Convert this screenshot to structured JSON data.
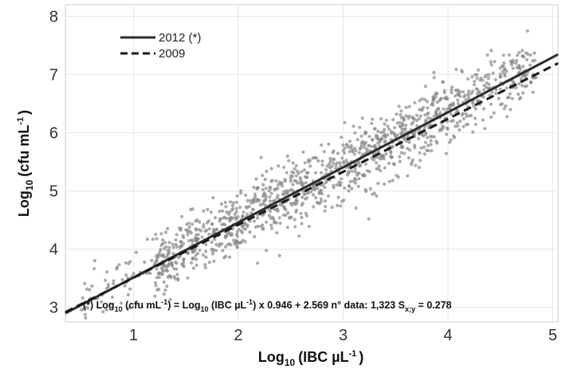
{
  "chart_data": {
    "type": "scatter",
    "xlabel": {
      "main": "Log",
      "sub": "10",
      "unit": "(IBC µL",
      "sup": "-1",
      "close": ")"
    },
    "ylabel": {
      "main": "Log",
      "sub": "10",
      "unit": "(cfu mL",
      "sup": "-1",
      "close": ")"
    },
    "xlim": [
      0.35,
      5.05
    ],
    "ylim": [
      2.75,
      8.2
    ],
    "x_ticks": [
      "1",
      "2",
      "3",
      "4",
      "5"
    ],
    "y_ticks": [
      "3",
      "4",
      "5",
      "6",
      "7",
      "8"
    ],
    "grid": true,
    "legend_position": "top-left",
    "lines": [
      {
        "name": "2012 (*)",
        "style": "solid",
        "color": "#2b2b2b",
        "slope": 0.946,
        "intercept": 2.569
      },
      {
        "name": "2009",
        "style": "dashed",
        "color": "#1a1a1a",
        "slope": 0.91,
        "intercept": 2.6
      }
    ],
    "scatter": {
      "n": 1323,
      "x_range": [
        0.5,
        4.85
      ],
      "slope": 0.946,
      "intercept": 2.569,
      "residual_sd": 0.278,
      "color": "#888888"
    },
    "annotation": {
      "p1": "(*) Log",
      "s1": "10",
      "p2": " (cfu mL",
      "s2": "-1",
      "p3": ") = Log",
      "s3": "10",
      "p4": " (IBC µL",
      "s4": "-1",
      "p5": ") x 0.946 + 2.569 n° data: 1,323 S",
      "s5": "x;y",
      "p6": " = 0.278"
    }
  }
}
